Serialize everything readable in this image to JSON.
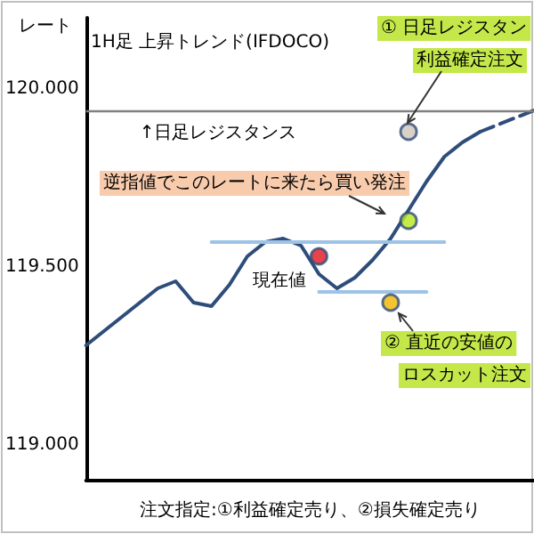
{
  "chart_data": {
    "type": "line",
    "title": "1H足 上昇トレンド(IFDOCO)",
    "ylabel": "レート",
    "xlabel": "注文指定:①利益確定売り、②損失確定売り",
    "categories": [
      null,
      null,
      null,
      null,
      null,
      null,
      null,
      null,
      null,
      null,
      null,
      null,
      null,
      null,
      null,
      null,
      null,
      null,
      null,
      null,
      null,
      null,
      null,
      null,
      null,
      null
    ],
    "ylim": [
      118.9,
      120.2
    ],
    "yticks": [
      {
        "value": 119,
        "label": "119.000"
      },
      {
        "value": 119.5,
        "label": "119.500"
      },
      {
        "value": 120,
        "label": "120.000"
      }
    ],
    "tick_labels": "y",
    "grid": false,
    "marker": "none",
    "line_style": "solid",
    "series": [
      {
        "color": "#2e4d7b",
        "values": [
          119.28,
          119.32,
          119.36,
          119.4,
          119.44,
          119.46,
          119.4,
          119.39,
          119.45,
          119.53,
          119.57,
          119.58,
          119.56,
          119.48,
          119.44,
          119.47,
          119.52,
          119.58,
          119.66,
          119.74,
          119.81,
          119.85,
          119.88,
          null,
          null,
          null
        ]
      },
      {
        "color": "#2e4d7b",
        "line_style": "dashed",
        "values": [
          null,
          null,
          null,
          null,
          null,
          null,
          null,
          null,
          null,
          null,
          null,
          null,
          null,
          null,
          null,
          null,
          null,
          null,
          null,
          null,
          null,
          null,
          119.88,
          119.9,
          119.92,
          119.94
        ]
      },
      {
        "color": "#9dc3e6",
        "values": [
          null,
          null,
          null,
          null,
          null,
          null,
          null,
          119.57,
          119.57,
          119.57,
          119.57,
          119.57,
          119.57,
          119.57,
          119.57,
          119.57,
          119.57,
          119.57,
          119.57,
          119.57,
          119.57,
          null,
          null,
          null,
          null,
          null
        ]
      },
      {
        "color": "#9dc3e6",
        "values": [
          null,
          null,
          null,
          null,
          null,
          null,
          null,
          null,
          null,
          null,
          null,
          null,
          null,
          119.43,
          119.43,
          119.43,
          119.43,
          119.43,
          119.43,
          119.43,
          null,
          null,
          null,
          null,
          null,
          null
        ]
      },
      {
        "type": "scatter",
        "marker": "circle",
        "color": "#d0c4b8",
        "values": [
          null,
          null,
          null,
          null,
          null,
          null,
          null,
          null,
          null,
          null,
          null,
          null,
          null,
          null,
          null,
          null,
          null,
          null,
          119.88,
          null,
          null,
          null,
          null,
          null,
          null,
          null
        ]
      },
      {
        "type": "scatter",
        "marker": "circle",
        "color": "#b5e61d",
        "values": [
          null,
          null,
          null,
          null,
          null,
          null,
          null,
          null,
          null,
          null,
          null,
          null,
          null,
          null,
          null,
          null,
          null,
          null,
          119.63,
          null,
          null,
          null,
          null,
          null,
          null,
          null
        ]
      },
      {
        "type": "scatter",
        "marker": "circle",
        "color": "#e0141e",
        "values": [
          null,
          null,
          null,
          null,
          null,
          null,
          null,
          null,
          null,
          null,
          null,
          null,
          null,
          119.53,
          null,
          null,
          null,
          null,
          null,
          null,
          null,
          null,
          null,
          null,
          null,
          null
        ]
      },
      {
        "type": "scatter",
        "marker": "circle",
        "color": "#f0b400",
        "values": [
          null,
          null,
          null,
          null,
          null,
          null,
          null,
          null,
          null,
          null,
          null,
          null,
          null,
          null,
          null,
          null,
          null,
          119.4,
          null,
          null,
          null,
          null,
          null,
          null,
          null,
          null
        ]
      }
    ],
    "ref_lines": [
      {
        "axis": "y",
        "value": 119.94,
        "label": "↑日足レジスタンス",
        "color": "#808080"
      }
    ],
    "annotations": [
      "逆指値でこのレートに来たら買い発注",
      "現在値",
      "① 日足レジスタン",
      "利益確定注文",
      "② 直近の安値の",
      "ロスカット注文"
    ]
  }
}
